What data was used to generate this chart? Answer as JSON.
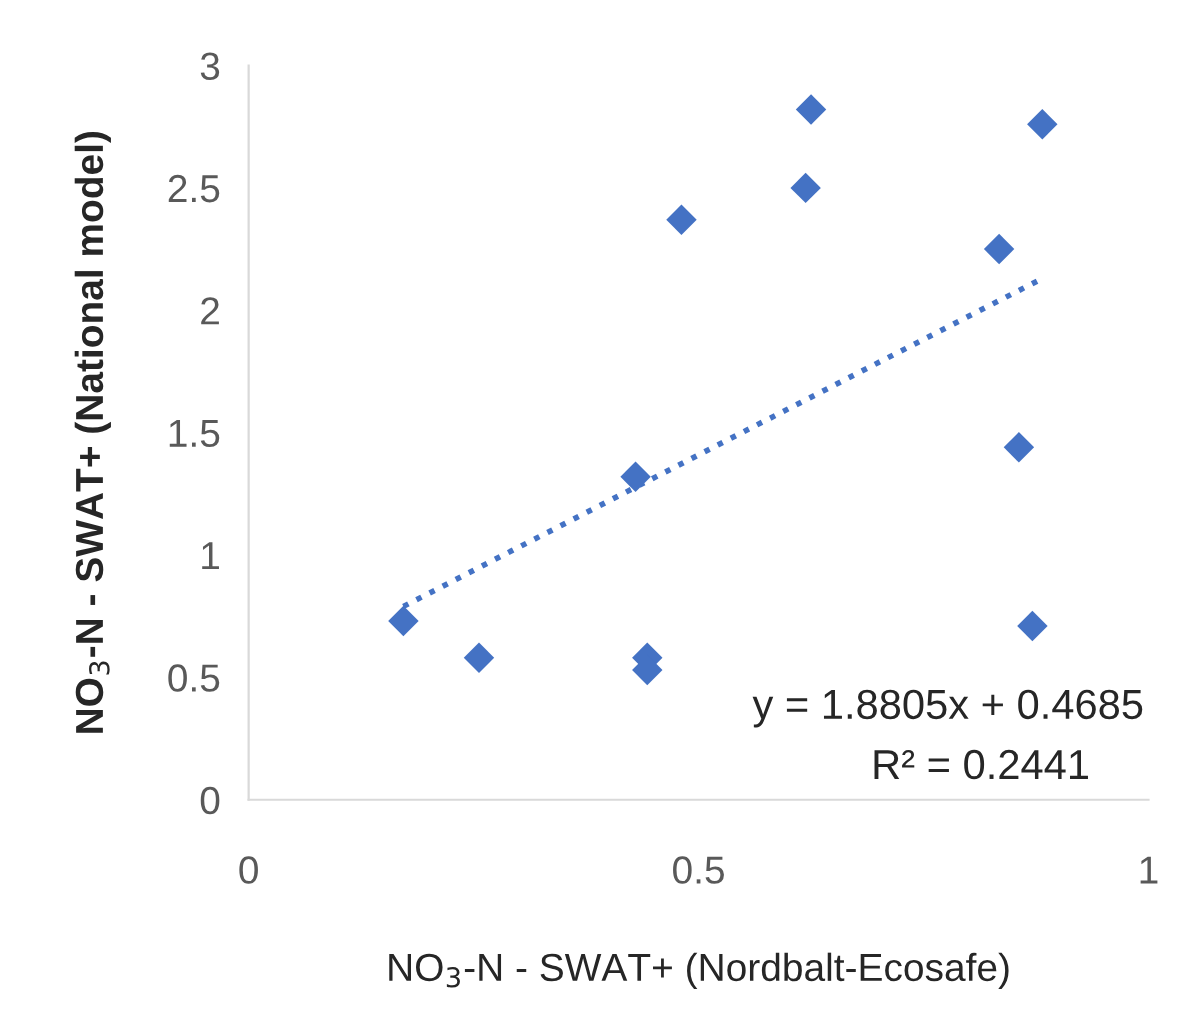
{
  "chart_data": {
    "type": "scatter",
    "xlabel": "NO$_{3}$-N - SWAT+ (Nordbalt-Ecosafe)",
    "ylabel": "NO$_{3}$-N - SWAT+ (National model)",
    "xlim": [
      0,
      1
    ],
    "xticks": [
      0,
      0.5,
      1
    ],
    "ylim": [
      0,
      3
    ],
    "yticks": [
      0,
      0.5,
      1,
      1.5,
      2,
      2.5,
      3
    ],
    "grid": false,
    "legend": false,
    "marker": "diamond",
    "series": [
      {
        "color": "#4472c4",
        "x": [
          0.172,
          0.256,
          0.443,
          0.443,
          0.43,
          0.481,
          0.619,
          0.625,
          0.882,
          0.834,
          0.856,
          0.871
        ],
        "values": [
          0.73,
          0.58,
          0.58,
          0.53,
          1.32,
          2.37,
          2.5,
          2.82,
          2.76,
          2.25,
          1.44,
          0.71
        ]
      },
      {
        "type": "line",
        "color": "#4472c4",
        "line_style": "dotted",
        "marker": "none",
        "x": [
          0.172,
          0.882
        ],
        "values": [
          0.79,
          2.13
        ]
      }
    ],
    "annotations": [
      "y = 1.8805x + 0.4685",
      "R² = 0.2441"
    ]
  }
}
